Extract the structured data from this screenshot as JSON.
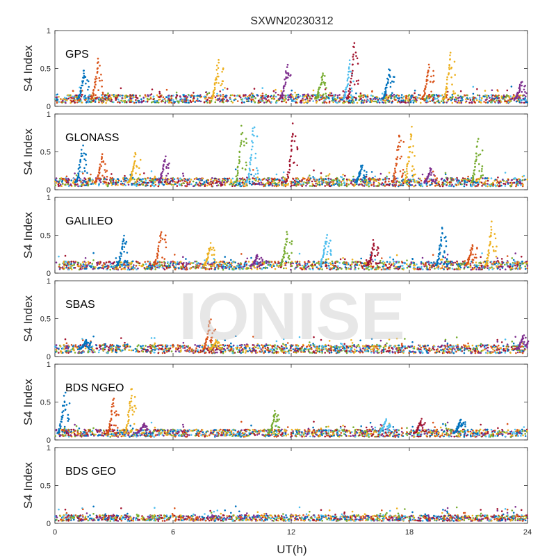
{
  "chart_data": {
    "type": "scatter",
    "title": "SXWN20230312",
    "xlabel": "UT(h)",
    "ylabel": "S4 Index",
    "xlim": [
      0,
      24
    ],
    "ylim": [
      0,
      1
    ],
    "x_ticks": [
      "0",
      "6",
      "12",
      "18",
      "24"
    ],
    "y_ticks": [
      "0",
      "0.5",
      "1"
    ],
    "watermark": "IONISE",
    "series_colors": [
      "#0072BD",
      "#D95319",
      "#EDB120",
      "#7E2F8E",
      "#77AC30",
      "#4DBEEE",
      "#A2142F"
    ],
    "panels": [
      {
        "label": "GPS",
        "baseline": 0.1,
        "spikes": [
          {
            "x": 1.5,
            "peak": 0.5
          },
          {
            "x": 2.2,
            "peak": 0.66
          },
          {
            "x": 8.3,
            "peak": 0.63
          },
          {
            "x": 11.8,
            "peak": 0.55
          },
          {
            "x": 13.6,
            "peak": 0.48
          },
          {
            "x": 15.0,
            "peak": 0.62
          },
          {
            "x": 15.2,
            "peak": 0.9
          },
          {
            "x": 17.0,
            "peak": 0.52
          },
          {
            "x": 19.0,
            "peak": 0.58
          },
          {
            "x": 20.1,
            "peak": 0.76
          },
          {
            "x": 23.7,
            "peak": 0.35
          }
        ]
      },
      {
        "label": "GLONASS",
        "baseline": 0.1,
        "spikes": [
          {
            "x": 1.4,
            "peak": 0.6
          },
          {
            "x": 2.4,
            "peak": 0.48
          },
          {
            "x": 4.1,
            "peak": 0.5
          },
          {
            "x": 5.6,
            "peak": 0.45
          },
          {
            "x": 9.5,
            "peak": 0.85
          },
          {
            "x": 10.1,
            "peak": 0.88
          },
          {
            "x": 12.1,
            "peak": 0.9
          },
          {
            "x": 15.6,
            "peak": 0.35
          },
          {
            "x": 17.5,
            "peak": 0.82
          },
          {
            "x": 18.1,
            "peak": 0.88
          },
          {
            "x": 19.1,
            "peak": 0.3
          },
          {
            "x": 21.5,
            "peak": 0.68
          }
        ]
      },
      {
        "label": "GALILEO",
        "baseline": 0.1,
        "spikes": [
          {
            "x": 3.5,
            "peak": 0.5
          },
          {
            "x": 5.4,
            "peak": 0.62
          },
          {
            "x": 7.9,
            "peak": 0.4
          },
          {
            "x": 10.3,
            "peak": 0.25
          },
          {
            "x": 11.8,
            "peak": 0.55
          },
          {
            "x": 13.8,
            "peak": 0.52
          },
          {
            "x": 16.2,
            "peak": 0.45
          },
          {
            "x": 19.7,
            "peak": 0.65
          },
          {
            "x": 21.2,
            "peak": 0.4
          },
          {
            "x": 22.2,
            "peak": 0.7
          }
        ]
      },
      {
        "label": "SBAS",
        "baseline": 0.1,
        "spikes": [
          {
            "x": 1.6,
            "peak": 0.22
          },
          {
            "x": 7.9,
            "peak": 0.55
          },
          {
            "x": 8.2,
            "peak": 0.22
          },
          {
            "x": 23.8,
            "peak": 0.3
          }
        ]
      },
      {
        "label": "BDS NGEO",
        "baseline": 0.09,
        "spikes": [
          {
            "x": 0.5,
            "peak": 0.65
          },
          {
            "x": 3.0,
            "peak": 0.6
          },
          {
            "x": 3.9,
            "peak": 0.72
          },
          {
            "x": 4.5,
            "peak": 0.22
          },
          {
            "x": 11.2,
            "peak": 0.4
          },
          {
            "x": 16.8,
            "peak": 0.28
          },
          {
            "x": 18.6,
            "peak": 0.28
          },
          {
            "x": 20.6,
            "peak": 0.28
          }
        ]
      },
      {
        "label": "BDS GEO",
        "baseline": 0.07,
        "spikes": []
      }
    ]
  }
}
